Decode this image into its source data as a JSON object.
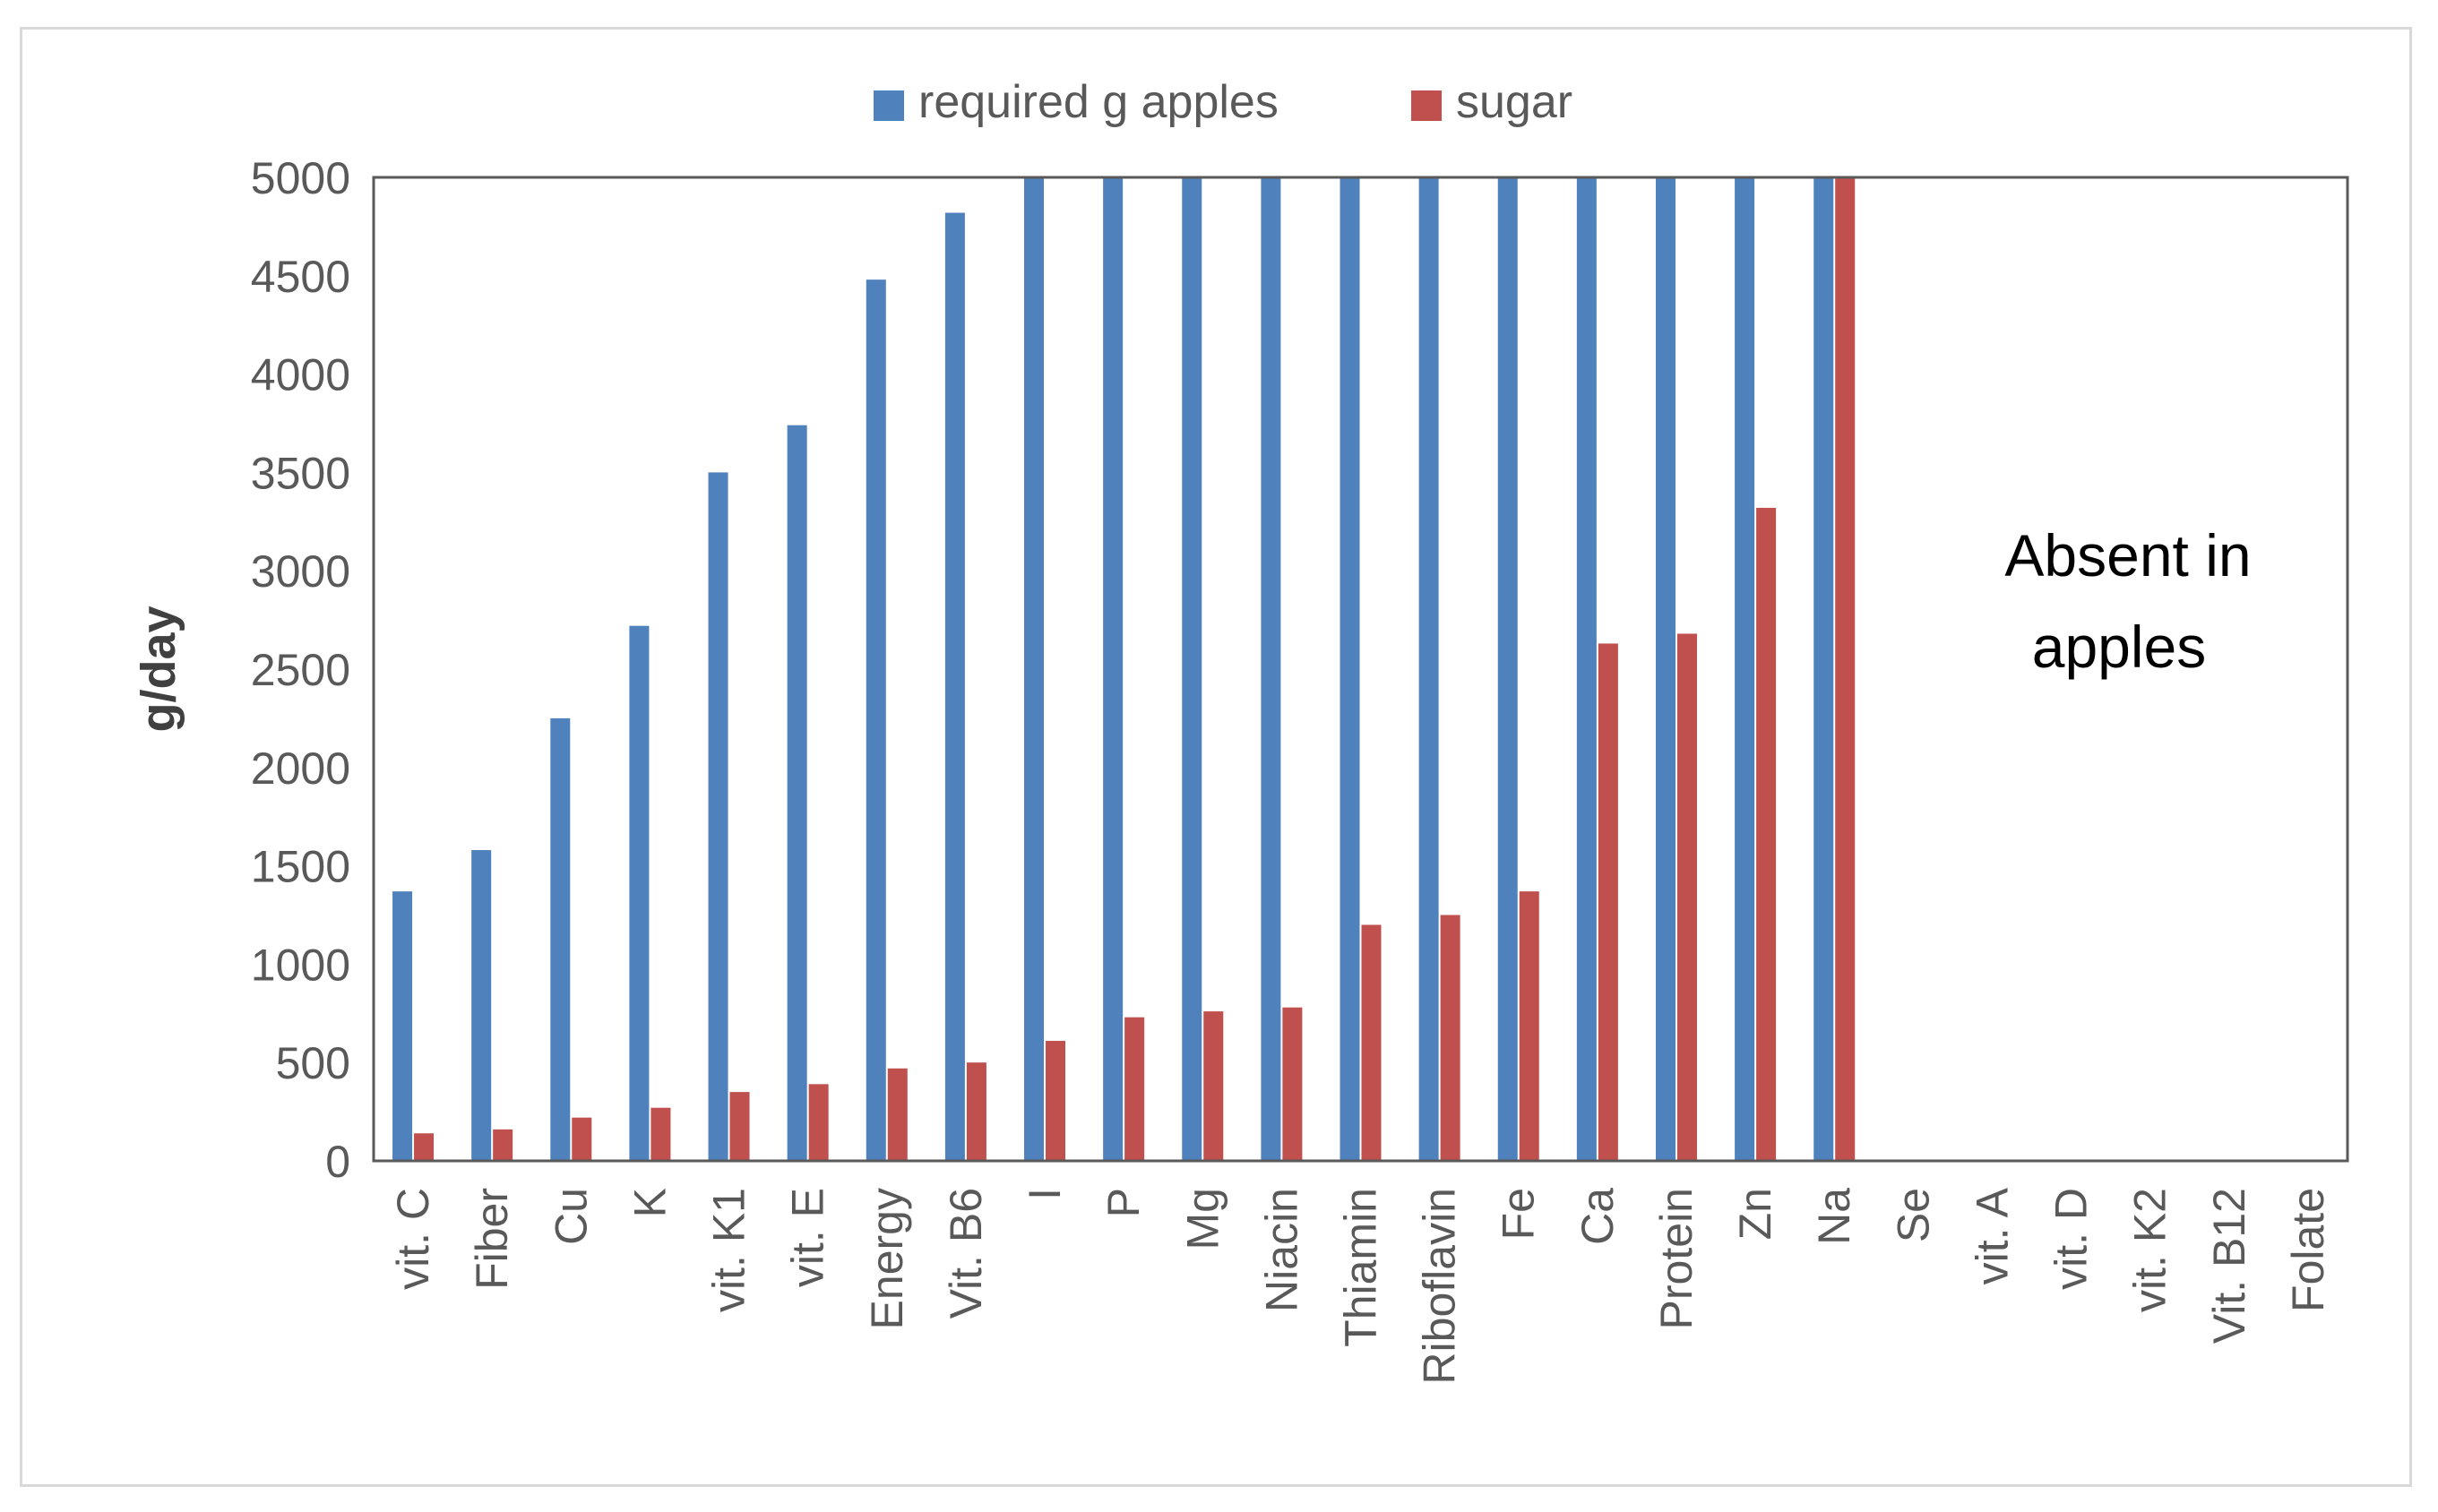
{
  "chart_data": {
    "type": "bar",
    "title": "",
    "xlabel": "",
    "ylabel": "g/day",
    "ylim": [
      0,
      5000
    ],
    "yticks": [
      0,
      500,
      1000,
      1500,
      2000,
      2500,
      3000,
      3500,
      4000,
      4500,
      5000
    ],
    "grid": false,
    "legend_position": "top-center",
    "categories": [
      "vit. C",
      "Fiber",
      "Cu",
      "K",
      "vit. K1",
      "vit. E",
      "Energy",
      "Vit. B6",
      "I",
      "P",
      "Mg",
      "Niacin",
      "Thiamin",
      "Riboflavin",
      "Fe",
      "Ca",
      "Protein",
      "Zn",
      "Na",
      "Se",
      "vit. A",
      "vit. D",
      "vit. K2",
      "Vit. B12",
      "Folate"
    ],
    "series": [
      {
        "name": "required g apples",
        "color": "#4f81bd",
        "values": [
          1370,
          1580,
          2250,
          2720,
          3500,
          3740,
          4480,
          4820,
          5000,
          5000,
          5000,
          5000,
          5000,
          5000,
          5000,
          5000,
          5000,
          5000,
          5000,
          null,
          null,
          null,
          null,
          null,
          null
        ]
      },
      {
        "name": "sugar",
        "color": "#c0504d",
        "values": [
          140,
          160,
          220,
          270,
          350,
          390,
          470,
          500,
          610,
          730,
          760,
          780,
          1200,
          1250,
          1370,
          2630,
          2680,
          3320,
          5000,
          null,
          null,
          null,
          null,
          null,
          null
        ]
      }
    ],
    "annotations": [
      {
        "line1": "Absent in",
        "line2": "apples"
      }
    ]
  }
}
